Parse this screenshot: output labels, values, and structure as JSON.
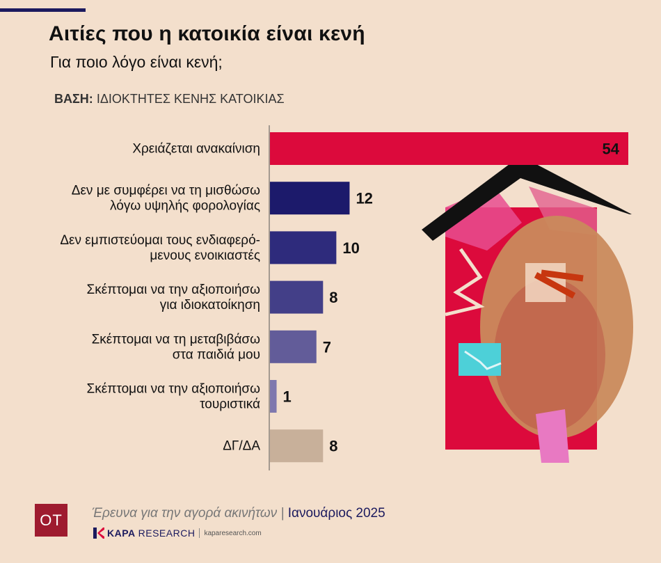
{
  "header": {
    "title": "Αιτίες που η κατοικία είναι κενή",
    "subtitle": "Για ποιο λόγο είναι κενή;",
    "base_label": "ΒΑΣΗ:",
    "base_value": "ΙΔΙΟΚΤΗΤΕΣ ΚΕΝΗΣ ΚΑΤΟΙΚΙΑΣ"
  },
  "chart_data": {
    "type": "bar",
    "orientation": "horizontal",
    "categories": [
      [
        "Χρειάζεται ανακαίνιση"
      ],
      [
        "Δεν με συμφέρει να τη μισθώσω",
        "λόγω υψηλής φορολογίας"
      ],
      [
        "Δεν εμπιστεύομαι τους ενδιαφερό-",
        "μενους ενοικιαστές"
      ],
      [
        "Σκέπτομαι να την αξιοποιήσω",
        "για ιδιοκατοίκηση"
      ],
      [
        "Σκέπτομαι να τη μεταβιβάσω",
        "στα παιδιά μου"
      ],
      [
        "Σκέπτομαι να την αξιοποιήσω",
        "τουριστικά"
      ],
      [
        "ΔΓ/ΔΑ"
      ]
    ],
    "values": [
      54,
      12,
      10,
      8,
      7,
      1,
      8
    ],
    "colors": [
      "#dc0a3c",
      "#1c1a6b",
      "#2e2b7c",
      "#433f88",
      "#625c99",
      "#7f78ae",
      "#c8b09a"
    ],
    "value_label_colors": [
      "#ffffff",
      "#111111",
      "#111111",
      "#111111",
      "#111111",
      "#111111",
      "#111111"
    ],
    "xlim": [
      0,
      54
    ]
  },
  "footer": {
    "logo": "OT",
    "source_text": "Έρευνα για την αγορά ακινήτων | ",
    "source_date": "Ιανουάριος 2025",
    "pollster_bold": "KAPA",
    "pollster_rest": "RESEARCH",
    "pollster_url": "kaparesearch.com"
  }
}
